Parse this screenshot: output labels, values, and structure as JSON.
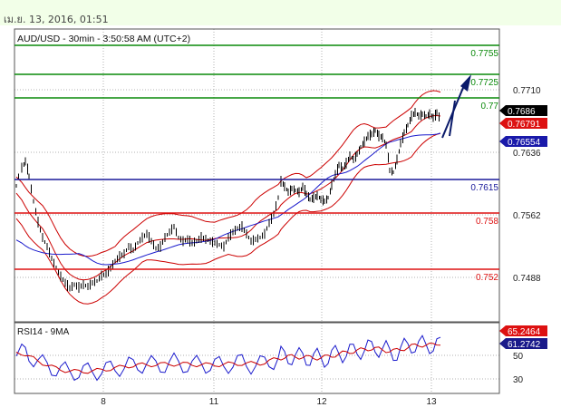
{
  "header": {
    "timestamp": "เม.ย. 13, 2016, 01:51"
  },
  "chart_data": {
    "type": "line",
    "title": "AUD/USD - 30min - 3:50:58 AM (UTC+2)",
    "y_ticks": [
      "0.7710",
      "0.7636",
      "0.7562",
      "0.7488"
    ],
    "x_ticks": [
      "8",
      "11",
      "12",
      "13"
    ],
    "levels": [
      {
        "label": "0.7755",
        "color": "#0a8a0a"
      },
      {
        "label": "0.7725",
        "color": "#0a8a0a"
      },
      {
        "label": "0.77",
        "color": "#0a8a0a"
      },
      {
        "label": "0.7615",
        "color": "#1a1a9a"
      },
      {
        "label": "0.758",
        "color": "#dd1111"
      },
      {
        "label": "0.752",
        "color": "#dd1111"
      }
    ],
    "price_tags": [
      {
        "label": "0.7686",
        "bg": "#000000",
        "fg": "#ffffff"
      },
      {
        "label": "0.76791",
        "bg": "#dd1111",
        "fg": "#ffffff"
      },
      {
        "label": "0.76554",
        "bg": "#1a1aaa",
        "fg": "#ffffff"
      }
    ],
    "rsi": {
      "title": "RSI14 - 9MA",
      "y_ticks": [
        "50",
        "30"
      ],
      "tags": [
        {
          "label": "65.2464",
          "bg": "#dd1111",
          "fg": "#ffffff"
        },
        {
          "label": "61.2742",
          "bg": "#1a1a8a",
          "fg": "#ffffff"
        }
      ]
    },
    "colors": {
      "price": "#000000",
      "bollinger": "#cc0000",
      "ma": "#1a1acc",
      "arrow": "#0a1a6a",
      "rsi": "#1a1acc",
      "rsi_ma": "#cc0000"
    }
  }
}
